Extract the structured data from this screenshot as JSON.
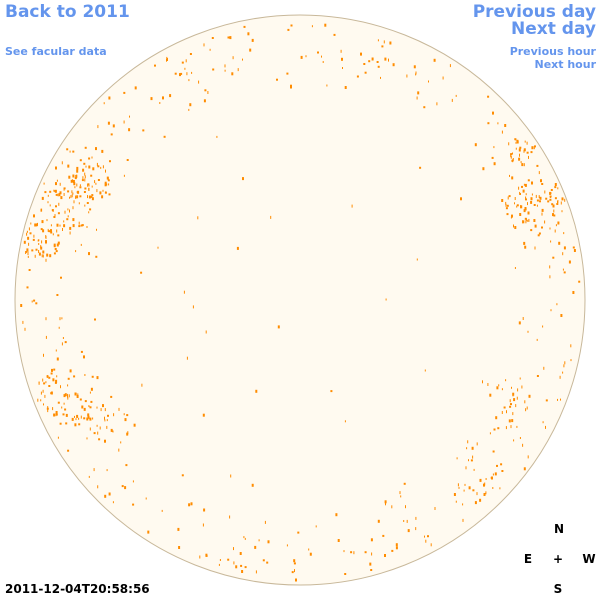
{
  "nav": {
    "back_label": "Back to 2011",
    "facular_label": "See facular data",
    "prev_day_label": "Previous day",
    "next_day_label": "Next day",
    "prev_hour_label": "Previous hour",
    "next_hour_label": "Next hour"
  },
  "timestamp": "2011-12-04T20:58:56",
  "compass": {
    "north": "N",
    "south": "S",
    "east": "E",
    "west": "W",
    "center": "+"
  },
  "colors": {
    "link": "#6495ed",
    "disk_fill": "#fffaf0",
    "disk_stroke": "#c8b89a",
    "spot": "#ff8c00"
  }
}
